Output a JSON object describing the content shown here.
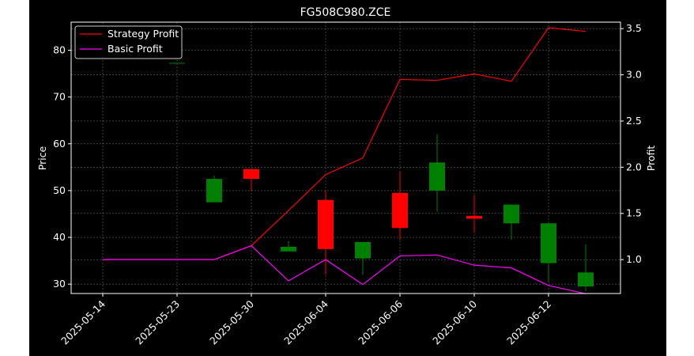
{
  "chart_data": {
    "type": "candlestick+line",
    "title": "FG508C980.ZCE",
    "ylabel_left": "Price",
    "ylabel_right": "Profit",
    "ylim_left": [
      28.0,
      86.0
    ],
    "ylim_right": [
      0.633,
      3.57
    ],
    "left_ticks": [
      30,
      40,
      50,
      60,
      70,
      80
    ],
    "right_ticks": [
      1.0,
      1.5,
      2.0,
      2.5,
      3.0,
      3.5
    ],
    "right_tick_labels": [
      "1.0",
      "1.5",
      "2.0",
      "2.5",
      "3.0",
      "3.5"
    ],
    "x_tick_labels": [
      "2025-05-14",
      "2025-05-23",
      "2025-05-30",
      "2025-06-04",
      "2025-06-06",
      "2025-06-10",
      "2025-06-12"
    ],
    "x_tick_index": [
      0,
      2,
      4,
      6,
      8,
      10,
      12
    ],
    "x_count": 14,
    "grid": true,
    "background": "#000000",
    "legend": {
      "placement": "top-left",
      "entries": [
        "Strategy Profit",
        "Basic Profit"
      ]
    },
    "colors": {
      "up": "#008000",
      "down": "#ff0000",
      "strategy": "#ff0000",
      "basic": "#ff00ff",
      "text": "#ffffff",
      "grid": "#808080"
    },
    "candles": [
      {
        "i": 2,
        "open": 77.3,
        "close": 77.3,
        "high": 77.3,
        "low": 77.3
      },
      {
        "i": 3,
        "open": 47.5,
        "close": 52.5,
        "high": 53.2,
        "low": 47.5
      },
      {
        "i": 4,
        "open": 54.6,
        "close": 52.5,
        "high": 54.6,
        "low": 50.0
      },
      {
        "i": 5,
        "open": 37.0,
        "close": 38.0,
        "high": 39.2,
        "low": 37.0
      },
      {
        "i": 6,
        "open": 48.0,
        "close": 37.5,
        "high": 49.9,
        "low": 32.0
      },
      {
        "i": 7,
        "open": 35.5,
        "close": 39.0,
        "high": 39.0,
        "low": 32.0
      },
      {
        "i": 8,
        "open": 49.5,
        "close": 42.0,
        "high": 54.0,
        "low": 39.5
      },
      {
        "i": 9,
        "open": 50.0,
        "close": 56.0,
        "high": 62.0,
        "low": 45.5
      },
      {
        "i": 10,
        "open": 44.6,
        "close": 44.0,
        "high": 49.0,
        "low": 41.0
      },
      {
        "i": 11,
        "open": 43.0,
        "close": 47.0,
        "high": 47.0,
        "low": 39.5
      },
      {
        "i": 12,
        "open": 34.5,
        "close": 43.0,
        "high": 43.0,
        "low": 30.5
      },
      {
        "i": 13,
        "open": 29.5,
        "close": 32.5,
        "high": 38.5,
        "low": 28.5
      }
    ],
    "strategy_profit": [
      1.0,
      1.0,
      1.0,
      1.0,
      1.15,
      1.53,
      1.92,
      2.1,
      2.95,
      2.94,
      3.01,
      2.93,
      3.51,
      3.47
    ],
    "basic_profit": [
      1.0,
      1.0,
      1.0,
      1.0,
      1.15,
      0.77,
      1.0,
      0.73,
      1.04,
      1.05,
      0.94,
      0.91,
      0.72,
      0.63
    ]
  }
}
